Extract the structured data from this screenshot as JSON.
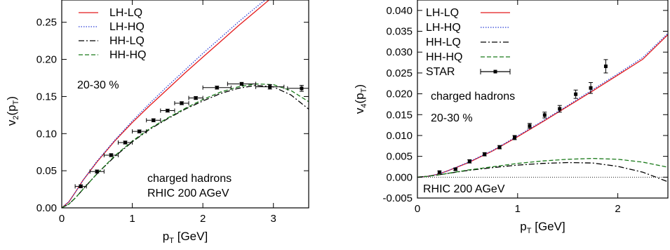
{
  "chart_data": [
    {
      "type": "line",
      "ylabel": "v",
      "ylabel_sub": "2",
      "ylabel_arg": "(p",
      "ylabel_arg_sub": "T",
      "ylabel_tail": ")",
      "xlabel": "p",
      "xlabel_sub": "T",
      "xlabel_tail": " [GeV]",
      "xlim": [
        0,
        3.5
      ],
      "ylim": [
        0,
        0.28
      ],
      "xticks": [
        0,
        1,
        2,
        3
      ],
      "xtick_labels": [
        "0",
        "1",
        "2",
        "3"
      ],
      "yticks": [
        0,
        0.05,
        0.1,
        0.15,
        0.2,
        0.25
      ],
      "ytick_labels": [
        "0.00",
        "0.05",
        "0.10",
        "0.15",
        "0.20",
        "0.25"
      ],
      "legend_position": "top-left",
      "annotations": [
        "20-30 %",
        "charged hadrons",
        "RHIC 200 AGeV"
      ],
      "series": [
        {
          "name": "LH-LQ",
          "style": "solid",
          "color": "#e41a1c",
          "x": [
            0,
            0.1,
            0.2,
            0.3,
            0.5,
            0.75,
            1.0,
            1.25,
            1.5,
            1.75,
            2.0,
            2.25,
            2.5,
            2.75,
            3.0
          ],
          "y": [
            0,
            0.008,
            0.022,
            0.037,
            0.062,
            0.09,
            0.115,
            0.138,
            0.16,
            0.182,
            0.203,
            0.224,
            0.245,
            0.265,
            0.285
          ]
        },
        {
          "name": "LH-HQ",
          "style": "dotted",
          "color": "#2b3fd6",
          "x": [
            0,
            0.1,
            0.2,
            0.3,
            0.5,
            0.75,
            1.0,
            1.25,
            1.5,
            1.75,
            2.0,
            2.25,
            2.5,
            2.75,
            2.95
          ],
          "y": [
            0,
            0.008,
            0.022,
            0.037,
            0.063,
            0.091,
            0.117,
            0.141,
            0.164,
            0.186,
            0.208,
            0.229,
            0.25,
            0.27,
            0.285
          ]
        },
        {
          "name": "HH-LQ",
          "style": "dashdot",
          "color": "#000000",
          "x": [
            0,
            0.1,
            0.2,
            0.3,
            0.5,
            0.75,
            1.0,
            1.25,
            1.5,
            1.75,
            2.0,
            2.25,
            2.5,
            2.75,
            3.0,
            3.25,
            3.5
          ],
          "y": [
            0,
            0.005,
            0.014,
            0.025,
            0.046,
            0.069,
            0.089,
            0.106,
            0.12,
            0.133,
            0.144,
            0.154,
            0.161,
            0.165,
            0.163,
            0.152,
            0.133
          ]
        },
        {
          "name": "HH-HQ",
          "style": "dashed",
          "color": "#1a7a1a",
          "x": [
            0,
            0.1,
            0.2,
            0.3,
            0.5,
            0.75,
            1.0,
            1.25,
            1.5,
            1.75,
            2.0,
            2.25,
            2.5,
            2.75,
            3.0,
            3.25,
            3.5
          ],
          "y": [
            0,
            0.005,
            0.014,
            0.025,
            0.046,
            0.07,
            0.09,
            0.107,
            0.121,
            0.134,
            0.146,
            0.156,
            0.163,
            0.167,
            0.166,
            0.158,
            0.143
          ]
        }
      ],
      "data_points": {
        "x": [
          0.27,
          0.5,
          0.7,
          0.9,
          1.1,
          1.3,
          1.5,
          1.7,
          1.9,
          2.2,
          2.55,
          2.95,
          3.4
        ],
        "y": [
          0.029,
          0.049,
          0.071,
          0.088,
          0.103,
          0.118,
          0.131,
          0.141,
          0.148,
          0.162,
          0.167,
          0.163,
          0.161
        ],
        "xerr": [
          0.08,
          0.1,
          0.1,
          0.1,
          0.1,
          0.1,
          0.1,
          0.1,
          0.1,
          0.2,
          0.2,
          0.2,
          0.2
        ],
        "yerr": [
          0.002,
          0.002,
          0.002,
          0.002,
          0.002,
          0.002,
          0.002,
          0.002,
          0.002,
          0.002,
          0.002,
          0.003,
          0.004
        ]
      }
    },
    {
      "type": "line",
      "ylabel": "v",
      "ylabel_sub": "4",
      "ylabel_arg": "(p",
      "ylabel_arg_sub": "T",
      "ylabel_tail": ")",
      "xlabel": "p",
      "xlabel_sub": "T",
      "xlabel_tail": " [GeV]",
      "xlim": [
        0,
        2.5
      ],
      "ylim": [
        -0.005,
        0.0425
      ],
      "xticks": [
        0,
        1,
        2
      ],
      "xtick_labels": [
        "0",
        "1",
        "2"
      ],
      "yticks": [
        -0.005,
        0,
        0.005,
        0.01,
        0.015,
        0.02,
        0.025,
        0.03,
        0.035,
        0.04
      ],
      "ytick_labels": [
        "-0.005",
        "0.000",
        "0.005",
        "0.010",
        "0.015",
        "0.020",
        "0.025",
        "0.030",
        "0.035",
        "0.040"
      ],
      "legend_position": "top-left",
      "annotations": [
        "charged hadrons",
        "20-30 %",
        "RHIC 200 AGeV"
      ],
      "series": [
        {
          "name": "LH-LQ",
          "style": "solid",
          "color": "#e41a1c",
          "x": [
            0,
            0.1,
            0.2,
            0.3,
            0.5,
            0.75,
            1.0,
            1.25,
            1.5,
            1.75,
            2.0,
            2.25,
            2.5
          ],
          "y": [
            0,
            0.0002,
            0.0007,
            0.0015,
            0.0034,
            0.0063,
            0.0097,
            0.0133,
            0.017,
            0.0207,
            0.0245,
            0.0283,
            0.0342
          ]
        },
        {
          "name": "LH-HQ",
          "style": "dotted",
          "color": "#2b3fd6",
          "x": [
            0,
            0.1,
            0.2,
            0.3,
            0.5,
            0.75,
            1.0,
            1.25,
            1.5,
            1.75,
            2.0,
            2.25,
            2.5
          ],
          "y": [
            0,
            0.0002,
            0.0007,
            0.0015,
            0.0035,
            0.0064,
            0.0099,
            0.0135,
            0.0172,
            0.021,
            0.0248,
            0.0287,
            0.0345
          ]
        },
        {
          "name": "HH-LQ",
          "style": "dashdot",
          "color": "#000000",
          "x": [
            0,
            0.1,
            0.2,
            0.3,
            0.5,
            0.75,
            1.0,
            1.25,
            1.5,
            1.75,
            2.0,
            2.25,
            2.5
          ],
          "y": [
            0,
            0.0002,
            0.0005,
            0.0009,
            0.0016,
            0.0023,
            0.0029,
            0.0033,
            0.0035,
            0.0034,
            0.0026,
            0.0012,
            -0.0011
          ]
        },
        {
          "name": "HH-HQ",
          "style": "dashed",
          "color": "#1a7a1a",
          "x": [
            0,
            0.1,
            0.2,
            0.3,
            0.5,
            0.75,
            1.0,
            1.25,
            1.5,
            1.75,
            2.0,
            2.25,
            2.5
          ],
          "y": [
            0,
            0.0002,
            0.0005,
            0.0009,
            0.0017,
            0.0025,
            0.0033,
            0.0039,
            0.0043,
            0.0045,
            0.0043,
            0.0036,
            0.0024
          ]
        }
      ],
      "data_series_name": "STAR",
      "data_points": {
        "x": [
          0.22,
          0.38,
          0.52,
          0.67,
          0.82,
          0.97,
          1.12,
          1.27,
          1.42,
          1.58,
          1.73,
          1.88
        ],
        "y": [
          0.0012,
          0.0019,
          0.0038,
          0.0055,
          0.0072,
          0.0095,
          0.0123,
          0.0149,
          0.0164,
          0.0199,
          0.0214,
          0.0266
        ],
        "yerr": [
          0.0003,
          0.0003,
          0.0004,
          0.0004,
          0.0004,
          0.0005,
          0.0006,
          0.0007,
          0.0008,
          0.001,
          0.0013,
          0.0016
        ]
      },
      "reference_line_y": 0
    }
  ]
}
